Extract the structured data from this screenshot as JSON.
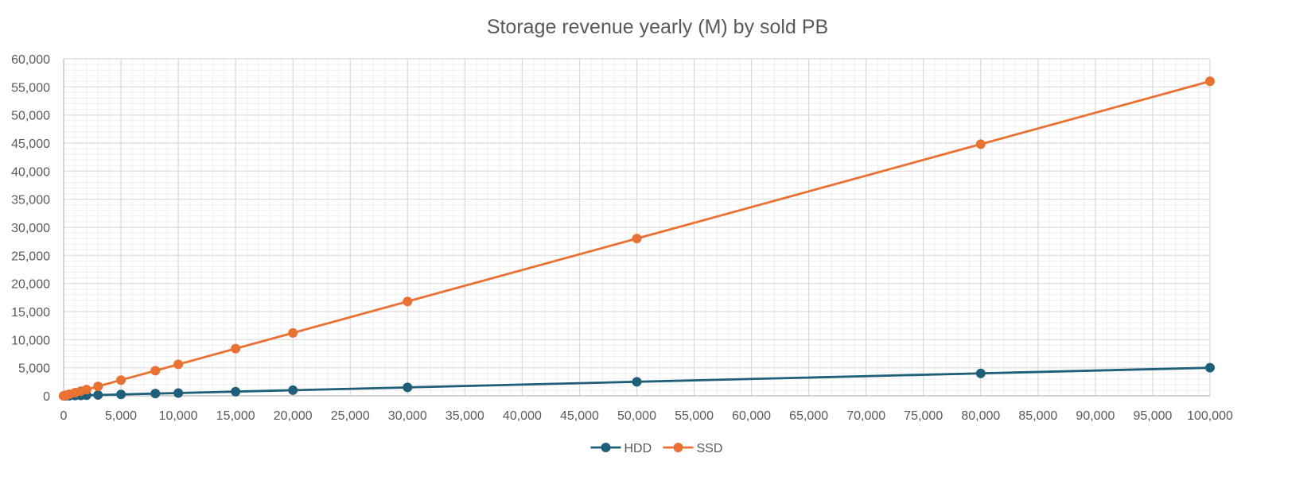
{
  "chart_data": {
    "type": "scatter",
    "title": "Storage revenue yearly (M) by sold PB",
    "xlabel": "",
    "ylabel": "",
    "xlim": [
      0,
      100000
    ],
    "ylim": [
      0,
      60000
    ],
    "x_ticks": [
      0,
      5000,
      10000,
      15000,
      20000,
      25000,
      30000,
      35000,
      40000,
      45000,
      50000,
      55000,
      60000,
      65000,
      70000,
      75000,
      80000,
      85000,
      90000,
      95000,
      100000
    ],
    "y_ticks": [
      0,
      5000,
      10000,
      15000,
      20000,
      25000,
      30000,
      35000,
      40000,
      45000,
      50000,
      55000,
      60000
    ],
    "x_tick_labels": [
      "0",
      "5,000",
      "10,000",
      "15,000",
      "20,000",
      "25,000",
      "30,000",
      "35,000",
      "40,000",
      "45,000",
      "50,000",
      "55,000",
      "60,000",
      "65,000",
      "70,000",
      "75,000",
      "80,000",
      "85,000",
      "90,000",
      "95,000",
      "100,000"
    ],
    "y_tick_labels": [
      "0",
      "5,000",
      "10,000",
      "15,000",
      "20,000",
      "25,000",
      "30,000",
      "35,000",
      "40,000",
      "45,000",
      "50,000",
      "55,000",
      "60,000"
    ],
    "grid": true,
    "minor_grid": true,
    "legend_position": "bottom",
    "series": [
      {
        "name": "HDD",
        "color": "#1f5f7a",
        "x": [
          0,
          100,
          200,
          500,
          1000,
          1500,
          2000,
          3000,
          5000,
          8000,
          10000,
          15000,
          20000,
          30000,
          50000,
          80000,
          100000
        ],
        "y": [
          0,
          5,
          10,
          25,
          50,
          75,
          100,
          150,
          250,
          400,
          500,
          750,
          1000,
          1500,
          2500,
          4000,
          5000
        ]
      },
      {
        "name": "SSD",
        "color": "#e97132",
        "x": [
          0,
          100,
          200,
          500,
          1000,
          1500,
          2000,
          3000,
          5000,
          8000,
          10000,
          15000,
          20000,
          30000,
          50000,
          80000,
          100000
        ],
        "y": [
          0,
          56,
          112,
          280,
          560,
          840,
          1120,
          1680,
          2800,
          4480,
          5600,
          8400,
          11200,
          16800,
          28000,
          44800,
          56000
        ]
      }
    ]
  }
}
